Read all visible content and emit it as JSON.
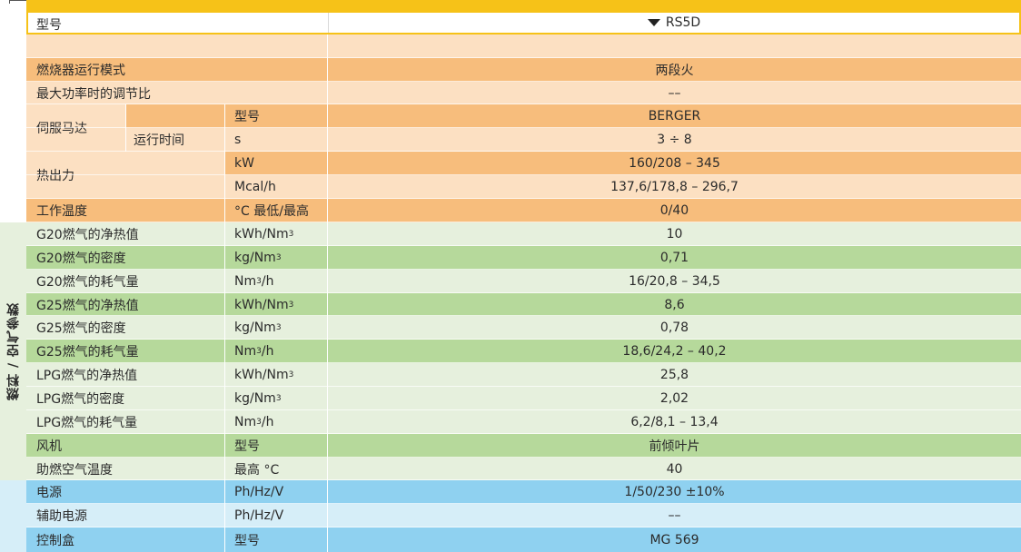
{
  "header": {
    "label": "型号",
    "model": "RS5D"
  },
  "side_label": "燃料 / 空气参数",
  "colors": {
    "yellow": "#f6c218",
    "orange_dark": "#f7bd7c",
    "orange_light": "#fce0c2",
    "green_dark": "#b6d99b",
    "green_light": "#e6f0dd",
    "blue_dark": "#8fd1f0",
    "blue_light": "#d6eef8"
  },
  "rows": [
    {
      "label": "",
      "unit": "",
      "value": ""
    },
    {
      "label": "燃烧器运行模式",
      "unit": "",
      "value": "两段火"
    },
    {
      "label": "最大功率时的调节比",
      "unit": "",
      "value": "––"
    },
    {
      "label": "",
      "sub": "",
      "unit": "型号",
      "value": "BERGER"
    },
    {
      "label": "",
      "sub": "运行时间",
      "unit": "s",
      "value": "3 ÷ 8"
    },
    {
      "label": "",
      "unit": "kW",
      "value": "160/208 – 345"
    },
    {
      "label": "",
      "unit": "Mcal/h",
      "value": "137,6/178,8 – 296,7"
    },
    {
      "label": "工作温度",
      "unit": "°C 最低/最高",
      "value": "0/40"
    },
    {
      "label": "G20燃气的净热值",
      "unit": "kWh/Nm",
      "unit_sup": "3",
      "value": "10"
    },
    {
      "label": "G20燃气的密度",
      "unit": "kg/Nm",
      "unit_sup": "3",
      "value": "0,71"
    },
    {
      "label": "G20燃气的耗气量",
      "unit": "Nm",
      "unit_sup": "3",
      "unit_after": "/h",
      "value": "16/20,8 – 34,5"
    },
    {
      "label": "G25燃气的净热值",
      "unit": "kWh/Nm",
      "unit_sup": "3",
      "value": "8,6"
    },
    {
      "label": "G25燃气的密度",
      "unit": "kg/Nm",
      "unit_sup": "3",
      "value": "0,78"
    },
    {
      "label": "G25燃气的耗气量",
      "unit": "Nm",
      "unit_sup": "3",
      "unit_after": "/h",
      "value": "18,6/24,2 – 40,2"
    },
    {
      "label": "LPG燃气的净热值",
      "unit": "kWh/Nm",
      "unit_sup": "3",
      "value": "25,8"
    },
    {
      "label": "LPG燃气的密度",
      "unit": "kg/Nm",
      "unit_sup": "3",
      "value": "2,02"
    },
    {
      "label": "LPG燃气的耗气量",
      "unit": "Nm",
      "unit_sup": "3",
      "unit_after": "/h",
      "value": "6,2/8,1 – 13,4"
    },
    {
      "label": "风机",
      "unit": "型号",
      "value": "前倾叶片"
    },
    {
      "label": "助燃空气温度",
      "unit": "最高 °C",
      "value": "40"
    },
    {
      "label": "电源",
      "unit": "Ph/Hz/V",
      "value": "1/50/230 ±10%"
    },
    {
      "label": "辅助电源",
      "unit": "Ph/Hz/V",
      "value": "––"
    },
    {
      "label": "控制盒",
      "unit": "型号",
      "value": "MG 569"
    }
  ],
  "merged_labels": {
    "servo": "伺服马达",
    "heat": "热出力"
  }
}
